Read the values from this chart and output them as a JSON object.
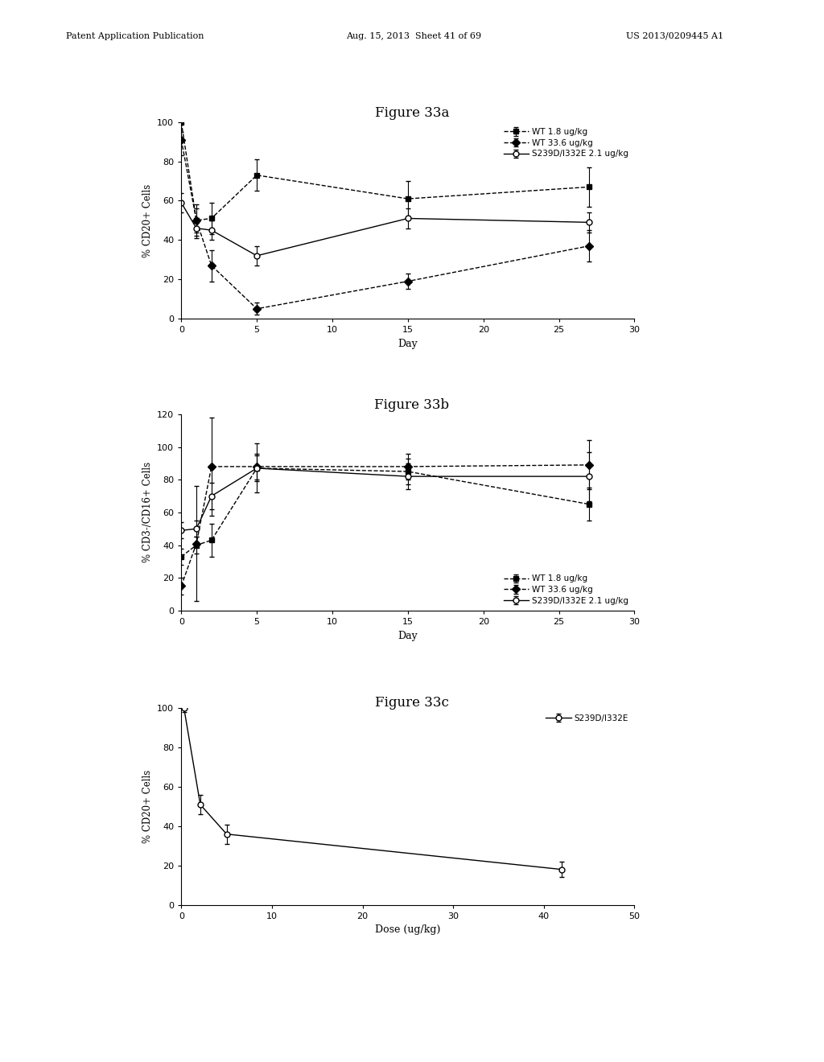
{
  "header_left": "Patent Application Publication",
  "header_mid": "Aug. 15, 2013  Sheet 41 of 69",
  "header_right": "US 2013/0209445 A1",
  "fig_title_a": "Figure 33a",
  "fig_title_b": "Figure 33b",
  "fig_title_c": "Figure 33c",
  "panel_a": {
    "xlabel": "Day",
    "ylabel": "% CD20+ Cells",
    "xlim": [
      0,
      30
    ],
    "ylim": [
      0,
      100
    ],
    "xticks": [
      0,
      5,
      10,
      15,
      20,
      25,
      30
    ],
    "yticks": [
      0,
      20,
      40,
      60,
      80,
      100
    ],
    "series": [
      {
        "label": "WT 1.8 ug/kg",
        "x": [
          0,
          1,
          2,
          5,
          15,
          27
        ],
        "y": [
          100,
          50,
          51,
          73,
          61,
          67
        ],
        "yerr": [
          5,
          6,
          8,
          8,
          9,
          10
        ],
        "marker": "s",
        "linestyle": "--",
        "fillstyle": "full"
      },
      {
        "label": "WT 33.6 ug/kg",
        "x": [
          0,
          1,
          2,
          5,
          15,
          27
        ],
        "y": [
          91,
          50,
          27,
          5,
          19,
          37
        ],
        "yerr": [
          8,
          8,
          8,
          3,
          4,
          8
        ],
        "marker": "D",
        "linestyle": "--",
        "fillstyle": "full"
      },
      {
        "label": "S239D/I332E 2.1 ug/kg",
        "x": [
          0,
          1,
          2,
          5,
          15,
          27
        ],
        "y": [
          59,
          46,
          45,
          32,
          51,
          49
        ],
        "yerr": [
          5,
          5,
          5,
          5,
          5,
          5
        ],
        "marker": "o",
        "linestyle": "-",
        "fillstyle": "none"
      }
    ],
    "legend_loc": "upper right",
    "legend_bbox": null
  },
  "panel_b": {
    "xlabel": "Day",
    "ylabel": "% CD3-/CD16+ Cells",
    "xlim": [
      0,
      30
    ],
    "ylim": [
      0,
      120
    ],
    "xticks": [
      0,
      5,
      10,
      15,
      20,
      25,
      30
    ],
    "yticks": [
      0,
      20,
      40,
      60,
      80,
      100,
      120
    ],
    "series": [
      {
        "label": "WT 1.8 ug/kg",
        "x": [
          0,
          1,
          2,
          5,
          15,
          27
        ],
        "y": [
          33,
          40,
          43,
          87,
          85,
          65
        ],
        "yerr": [
          5,
          5,
          10,
          8,
          8,
          10
        ],
        "marker": "s",
        "linestyle": "--",
        "fillstyle": "full"
      },
      {
        "label": "WT 33.6 ug/kg",
        "x": [
          0,
          1,
          2,
          5,
          15,
          27
        ],
        "y": [
          15,
          41,
          88,
          88,
          88,
          89
        ],
        "yerr": [
          5,
          35,
          30,
          8,
          8,
          15
        ],
        "marker": "D",
        "linestyle": "--",
        "fillstyle": "full"
      },
      {
        "label": "S239D/I332E 2.1 ug/kg",
        "x": [
          0,
          1,
          2,
          5,
          15,
          27
        ],
        "y": [
          49,
          50,
          70,
          87,
          82,
          82
        ],
        "yerr": [
          5,
          5,
          8,
          15,
          8,
          15
        ],
        "marker": "o",
        "linestyle": "-",
        "fillstyle": "none"
      }
    ],
    "legend_loc": "lower right",
    "legend_bbox": null
  },
  "panel_c": {
    "xlabel": "Dose (ug/kg)",
    "ylabel": "% CD20+ Cells",
    "xlim": [
      0,
      50
    ],
    "ylim": [
      0,
      100
    ],
    "xticks": [
      0,
      10,
      20,
      30,
      40,
      50
    ],
    "yticks": [
      0,
      20,
      40,
      60,
      80,
      100
    ],
    "series": [
      {
        "label": "S239D/I332E",
        "x": [
          0.3,
          2.1,
          5,
          42
        ],
        "y": [
          100,
          51,
          36,
          18
        ],
        "yerr": [
          2,
          5,
          5,
          4
        ],
        "marker": "o",
        "linestyle": "-",
        "fillstyle": "none"
      }
    ],
    "legend_loc": "upper right",
    "legend_bbox": null
  }
}
